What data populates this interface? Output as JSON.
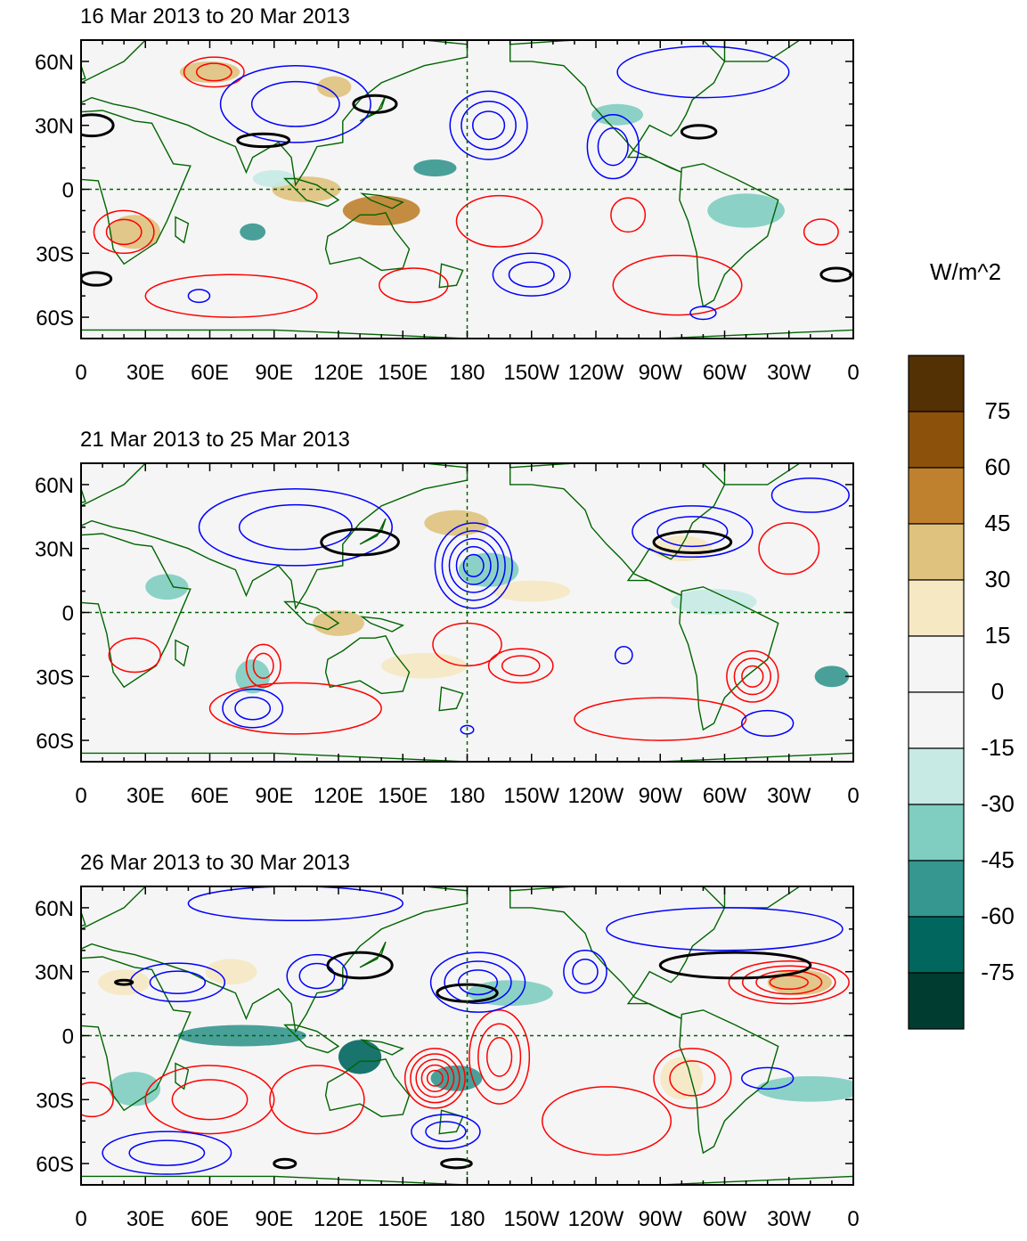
{
  "panels": [
    {
      "title": "16 Mar 2013 to 20 Mar 2013",
      "lat_labels": [
        "60N",
        "30N",
        "0",
        "30S",
        "60S"
      ],
      "lon_labels": [
        "0",
        "30E",
        "60E",
        "90E",
        "120E",
        "150E",
        "180",
        "150W",
        "120W",
        "90W",
        "60W",
        "30W",
        "0"
      ],
      "features": {
        "shade": [
          {
            "lon": 140,
            "lat": -10,
            "rx": 18,
            "ry": 7,
            "level": 45
          },
          {
            "lon": 105,
            "lat": 0,
            "rx": 16,
            "ry": 6,
            "level": 30
          },
          {
            "lon": 25,
            "lat": -20,
            "rx": 12,
            "ry": 8,
            "level": 30
          },
          {
            "lon": 60,
            "lat": 55,
            "rx": 14,
            "ry": 5,
            "level": 30
          },
          {
            "lon": 118,
            "lat": 48,
            "rx": 8,
            "ry": 5,
            "level": 30
          },
          {
            "lon": 165,
            "lat": 10,
            "rx": 10,
            "ry": 4,
            "level": -45
          },
          {
            "lon": 80,
            "lat": -20,
            "rx": 6,
            "ry": 4,
            "level": -45
          },
          {
            "lon": 250,
            "lat": 35,
            "rx": 12,
            "ry": 5,
            "level": -30
          },
          {
            "lon": 310,
            "lat": -10,
            "rx": 18,
            "ry": 8,
            "level": -30
          },
          {
            "lon": 90,
            "lat": 5,
            "rx": 10,
            "ry": 4,
            "level": -15
          }
        ],
        "positive_contours": [
          {
            "lon": 62,
            "lat": 55,
            "rx": 14,
            "ry": 7,
            "rings": 2
          },
          {
            "lon": 20,
            "lat": -20,
            "rx": 14,
            "ry": 10,
            "rings": 2
          },
          {
            "lon": 70,
            "lat": -50,
            "rx": 40,
            "ry": 10,
            "rings": 1
          },
          {
            "lon": 155,
            "lat": -45,
            "rx": 16,
            "ry": 8,
            "rings": 1
          },
          {
            "lon": 195,
            "lat": -15,
            "rx": 20,
            "ry": 12,
            "rings": 1
          },
          {
            "lon": 278,
            "lat": -45,
            "rx": 30,
            "ry": 14,
            "rings": 1
          },
          {
            "lon": 255,
            "lat": -12,
            "rx": 8,
            "ry": 8,
            "rings": 1
          },
          {
            "lon": 345,
            "lat": -20,
            "rx": 8,
            "ry": 6,
            "rings": 1
          }
        ],
        "negative_contours": [
          {
            "lon": 100,
            "lat": 40,
            "rx": 35,
            "ry": 18,
            "rings": 2
          },
          {
            "lon": 190,
            "lat": 30,
            "rx": 18,
            "ry": 16,
            "rings": 3
          },
          {
            "lon": 248,
            "lat": 20,
            "rx": 12,
            "ry": 15,
            "rings": 2
          },
          {
            "lon": 210,
            "lat": -40,
            "rx": 18,
            "ry": 10,
            "rings": 2
          },
          {
            "lon": 290,
            "lat": 55,
            "rx": 40,
            "ry": 12,
            "rings": 1
          },
          {
            "lon": 55,
            "lat": -50,
            "rx": 5,
            "ry": 3,
            "rings": 1
          },
          {
            "lon": 290,
            "lat": -58,
            "rx": 6,
            "ry": 3,
            "rings": 1
          }
        ],
        "zero_contours": [
          {
            "lon": 5,
            "lat": 30,
            "rx": 10,
            "ry": 5
          },
          {
            "lon": 137,
            "lat": 40,
            "rx": 10,
            "ry": 4
          },
          {
            "lon": 85,
            "lat": 23,
            "rx": 12,
            "ry": 3
          },
          {
            "lon": 288,
            "lat": 27,
            "rx": 8,
            "ry": 3
          },
          {
            "lon": 352,
            "lat": -40,
            "rx": 7,
            "ry": 3
          },
          {
            "lon": 7,
            "lat": -42,
            "rx": 7,
            "ry": 3
          }
        ]
      }
    },
    {
      "title": "21 Mar 2013 to 25 Mar 2013",
      "lat_labels": [
        "60N",
        "30N",
        "0",
        "30S",
        "60S"
      ],
      "lon_labels": [
        "0",
        "30E",
        "60E",
        "90E",
        "120E",
        "150E",
        "180",
        "150W",
        "120W",
        "90W",
        "60W",
        "30W",
        "0"
      ],
      "features": {
        "shade": [
          {
            "lon": 120,
            "lat": -5,
            "rx": 12,
            "ry": 6,
            "level": 30
          },
          {
            "lon": 175,
            "lat": 42,
            "rx": 15,
            "ry": 6,
            "level": 30
          },
          {
            "lon": 210,
            "lat": 10,
            "rx": 18,
            "ry": 5,
            "level": 15
          },
          {
            "lon": 280,
            "lat": 30,
            "rx": 14,
            "ry": 6,
            "level": 15
          },
          {
            "lon": 160,
            "lat": -25,
            "rx": 20,
            "ry": 6,
            "level": 15
          },
          {
            "lon": 190,
            "lat": 20,
            "rx": 14,
            "ry": 8,
            "level": -30
          },
          {
            "lon": 80,
            "lat": -30,
            "rx": 8,
            "ry": 8,
            "level": -30
          },
          {
            "lon": 350,
            "lat": -30,
            "rx": 8,
            "ry": 5,
            "level": -45
          },
          {
            "lon": 40,
            "lat": 12,
            "rx": 10,
            "ry": 6,
            "level": -30
          },
          {
            "lon": 295,
            "lat": 5,
            "rx": 20,
            "ry": 6,
            "level": -15
          }
        ],
        "positive_contours": [
          {
            "lon": 180,
            "lat": -15,
            "rx": 16,
            "ry": 10,
            "rings": 1
          },
          {
            "lon": 205,
            "lat": -25,
            "rx": 15,
            "ry": 8,
            "rings": 2
          },
          {
            "lon": 313,
            "lat": -30,
            "rx": 12,
            "ry": 12,
            "rings": 3
          },
          {
            "lon": 85,
            "lat": -25,
            "rx": 8,
            "ry": 10,
            "rings": 2
          },
          {
            "lon": 25,
            "lat": -20,
            "rx": 12,
            "ry": 8,
            "rings": 1
          },
          {
            "lon": 100,
            "lat": -45,
            "rx": 40,
            "ry": 12,
            "rings": 1
          },
          {
            "lon": 270,
            "lat": -50,
            "rx": 40,
            "ry": 10,
            "rings": 1
          },
          {
            "lon": 330,
            "lat": 30,
            "rx": 14,
            "ry": 12,
            "rings": 1
          }
        ],
        "negative_contours": [
          {
            "lon": 183,
            "lat": 22,
            "rx": 18,
            "ry": 20,
            "rings": 5
          },
          {
            "lon": 80,
            "lat": -45,
            "rx": 14,
            "ry": 9,
            "rings": 2
          },
          {
            "lon": 100,
            "lat": 40,
            "rx": 45,
            "ry": 18,
            "rings": 2
          },
          {
            "lon": 285,
            "lat": 38,
            "rx": 28,
            "ry": 12,
            "rings": 2
          },
          {
            "lon": 320,
            "lat": -52,
            "rx": 12,
            "ry": 6,
            "rings": 1
          },
          {
            "lon": 253,
            "lat": -20,
            "rx": 4,
            "ry": 4,
            "rings": 1
          },
          {
            "lon": 180,
            "lat": -55,
            "rx": 3,
            "ry": 2,
            "rings": 1
          },
          {
            "lon": 340,
            "lat": 55,
            "rx": 18,
            "ry": 8,
            "rings": 1
          }
        ],
        "zero_contours": [
          {
            "lon": 130,
            "lat": 33,
            "rx": 18,
            "ry": 6
          },
          {
            "lon": 285,
            "lat": 33,
            "rx": 18,
            "ry": 5
          }
        ]
      }
    },
    {
      "title": "26 Mar 2013 to 30 Mar 2013",
      "lat_labels": [
        "60N",
        "30N",
        "0",
        "30S",
        "60S"
      ],
      "lon_labels": [
        "0",
        "30E",
        "60E",
        "90E",
        "120E",
        "150E",
        "180",
        "150W",
        "120W",
        "90W",
        "60W",
        "30W",
        "0"
      ],
      "features": {
        "shade": [
          {
            "lon": 75,
            "lat": 0,
            "rx": 30,
            "ry": 5,
            "level": -45
          },
          {
            "lon": 130,
            "lat": -10,
            "rx": 10,
            "ry": 8,
            "level": -60
          },
          {
            "lon": 175,
            "lat": -20,
            "rx": 12,
            "ry": 6,
            "level": -45
          },
          {
            "lon": 25,
            "lat": -25,
            "rx": 12,
            "ry": 8,
            "level": -30
          },
          {
            "lon": 340,
            "lat": -25,
            "rx": 25,
            "ry": 6,
            "level": -30
          },
          {
            "lon": 200,
            "lat": 20,
            "rx": 20,
            "ry": 6,
            "level": -30
          },
          {
            "lon": 335,
            "lat": 25,
            "rx": 15,
            "ry": 6,
            "level": 30
          },
          {
            "lon": 20,
            "lat": 25,
            "rx": 12,
            "ry": 6,
            "level": 15
          },
          {
            "lon": 70,
            "lat": 30,
            "rx": 12,
            "ry": 6,
            "level": 15
          },
          {
            "lon": 280,
            "lat": -20,
            "rx": 10,
            "ry": 10,
            "level": 15
          }
        ],
        "positive_contours": [
          {
            "lon": 165,
            "lat": -20,
            "rx": 14,
            "ry": 14,
            "rings": 5
          },
          {
            "lon": 195,
            "lat": -10,
            "rx": 14,
            "ry": 22,
            "rings": 3
          },
          {
            "lon": 330,
            "lat": 25,
            "rx": 28,
            "ry": 10,
            "rings": 4
          },
          {
            "lon": 60,
            "lat": -30,
            "rx": 30,
            "ry": 16,
            "rings": 2
          },
          {
            "lon": 285,
            "lat": -20,
            "rx": 18,
            "ry": 14,
            "rings": 2
          },
          {
            "lon": 110,
            "lat": -30,
            "rx": 22,
            "ry": 16,
            "rings": 1
          },
          {
            "lon": 245,
            "lat": -40,
            "rx": 30,
            "ry": 16,
            "rings": 1
          },
          {
            "lon": 5,
            "lat": -30,
            "rx": 10,
            "ry": 8,
            "rings": 1
          }
        ],
        "negative_contours": [
          {
            "lon": 185,
            "lat": 25,
            "rx": 22,
            "ry": 14,
            "rings": 3
          },
          {
            "lon": 45,
            "lat": 25,
            "rx": 22,
            "ry": 9,
            "rings": 2
          },
          {
            "lon": 110,
            "lat": 28,
            "rx": 14,
            "ry": 10,
            "rings": 2
          },
          {
            "lon": 40,
            "lat": -55,
            "rx": 30,
            "ry": 10,
            "rings": 2
          },
          {
            "lon": 170,
            "lat": -45,
            "rx": 16,
            "ry": 8,
            "rings": 2
          },
          {
            "lon": 235,
            "lat": 30,
            "rx": 10,
            "ry": 10,
            "rings": 2
          },
          {
            "lon": 320,
            "lat": -20,
            "rx": 12,
            "ry": 5,
            "rings": 1
          },
          {
            "lon": 300,
            "lat": 50,
            "rx": 55,
            "ry": 10,
            "rings": 1
          },
          {
            "lon": 100,
            "lat": 62,
            "rx": 50,
            "ry": 8,
            "rings": 1
          }
        ],
        "zero_contours": [
          {
            "lon": 130,
            "lat": 33,
            "rx": 15,
            "ry": 6
          },
          {
            "lon": 180,
            "lat": 20,
            "rx": 14,
            "ry": 4
          },
          {
            "lon": 305,
            "lat": 33,
            "rx": 35,
            "ry": 6
          },
          {
            "lon": 175,
            "lat": -60,
            "rx": 7,
            "ry": 2
          },
          {
            "lon": 95,
            "lat": -60,
            "rx": 5,
            "ry": 2
          },
          {
            "lon": 20,
            "lat": 25,
            "rx": 4,
            "ry": 1
          }
        ]
      }
    }
  ],
  "colorbar": {
    "unit": "W/m^2",
    "labels": [
      "75",
      "60",
      "45",
      "30",
      "15",
      "0",
      "-15",
      "-30",
      "-45",
      "-60",
      "-75"
    ],
    "colors": [
      "#543005",
      "#8c510a",
      "#bf812d",
      "#dfc27d",
      "#f6e8c3",
      "#f5f5f5",
      "#f5f5f5",
      "#c7eae5",
      "#80cdc1",
      "#35978f",
      "#01665e",
      "#003c30"
    ]
  },
  "style": {
    "positive_contour_color": "#ff0000",
    "negative_contour_color": "#0000ff",
    "zero_contour_color": "#000000",
    "coastline_color": "#006400",
    "reference_line_color": "#006400",
    "background_color": "#f5f5f5"
  }
}
